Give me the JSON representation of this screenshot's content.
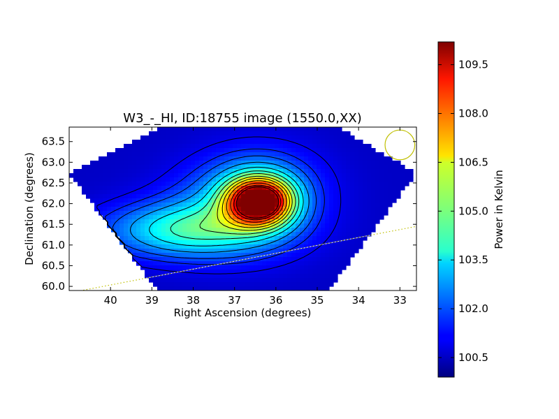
{
  "chart_data": {
    "type": "heatmap",
    "title": "W3_-_HI, ID:18755 image (1550.0,XX)",
    "xlabel": "Right Ascension (degrees)",
    "ylabel": "Declination (degrees)",
    "xlim": [
      41.0,
      32.6
    ],
    "ylim": [
      59.9,
      63.85
    ],
    "x_ticks": [
      40,
      39,
      38,
      37,
      36,
      35,
      34,
      33
    ],
    "y_ticks": [
      60.0,
      60.5,
      61.0,
      61.5,
      62.0,
      62.5,
      63.0,
      63.5
    ],
    "colorbar": {
      "label": "Power in Kelvin",
      "range": [
        99.9,
        110.2
      ],
      "ticks": [
        100.5,
        102.0,
        103.5,
        105.0,
        106.5,
        108.0,
        109.5
      ],
      "colormap": "jet"
    },
    "background_level": 100.6,
    "sources": [
      {
        "ra": 36.4,
        "dec": 62.05,
        "peak": 9.4,
        "sigma_ra": 0.55,
        "sigma_dec": 0.4
      },
      {
        "ra": 36.9,
        "dec": 61.75,
        "peak": 2.2,
        "sigma_ra": 1.2,
        "sigma_dec": 0.7
      },
      {
        "ra": 38.3,
        "dec": 61.35,
        "peak": 3.0,
        "sigma_ra": 1.3,
        "sigma_dec": 0.45
      },
      {
        "ra": 36.4,
        "dec": 62.6,
        "peak": 1.4,
        "sigma_ra": 1.0,
        "sigma_dec": 0.6
      }
    ],
    "contour_levels": [
      101.0,
      101.5,
      102.0,
      102.7,
      103.5,
      104.3,
      105.0,
      105.8,
      106.5,
      107.3,
      108.2,
      109.0,
      109.6
    ],
    "beam": {
      "ra": 33.0,
      "dec": 63.42,
      "radius_deg": 0.36,
      "color": "#bfbf00"
    },
    "galactic_plane": {
      "points": [
        [
          40.7,
          59.9
        ],
        [
          32.6,
          61.45
        ]
      ],
      "color": "#bfbf00"
    }
  }
}
